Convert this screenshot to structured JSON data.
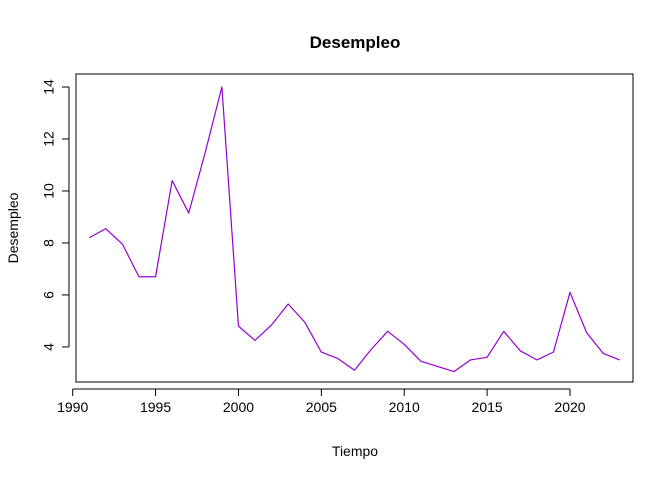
{
  "chart_data": {
    "type": "line",
    "title": "Desempleo",
    "xlabel": "Tiempo",
    "ylabel": "Desempleo",
    "xlim": [
      1990.2,
      2023.8
    ],
    "ylim": [
      2.65,
      14.5
    ],
    "xticks": [
      1990,
      1995,
      2000,
      2005,
      2010,
      2015,
      2020
    ],
    "yticks": [
      4,
      6,
      8,
      10,
      12,
      14
    ],
    "grid": false,
    "legend": "none",
    "series": [
      {
        "color": "#9400D3",
        "x": [
          1991,
          1992,
          1993,
          1994,
          1995,
          1996,
          1997,
          1998,
          1999,
          2000,
          2001,
          2002,
          2003,
          2004,
          2005,
          2006,
          2007,
          2008,
          2009,
          2010,
          2011,
          2012,
          2013,
          2014,
          2015,
          2016,
          2017,
          2018,
          2019,
          2020,
          2021,
          2022,
          2023
        ],
        "values": [
          8.2,
          8.55,
          7.95,
          6.7,
          6.7,
          10.4,
          9.15,
          11.5,
          14.0,
          4.8,
          4.25,
          4.85,
          5.65,
          4.95,
          3.8,
          3.55,
          3.1,
          3.9,
          4.6,
          4.1,
          3.45,
          3.25,
          3.05,
          3.5,
          3.6,
          4.6,
          3.85,
          3.5,
          3.8,
          6.1,
          4.55,
          3.75,
          3.5
        ]
      }
    ]
  }
}
